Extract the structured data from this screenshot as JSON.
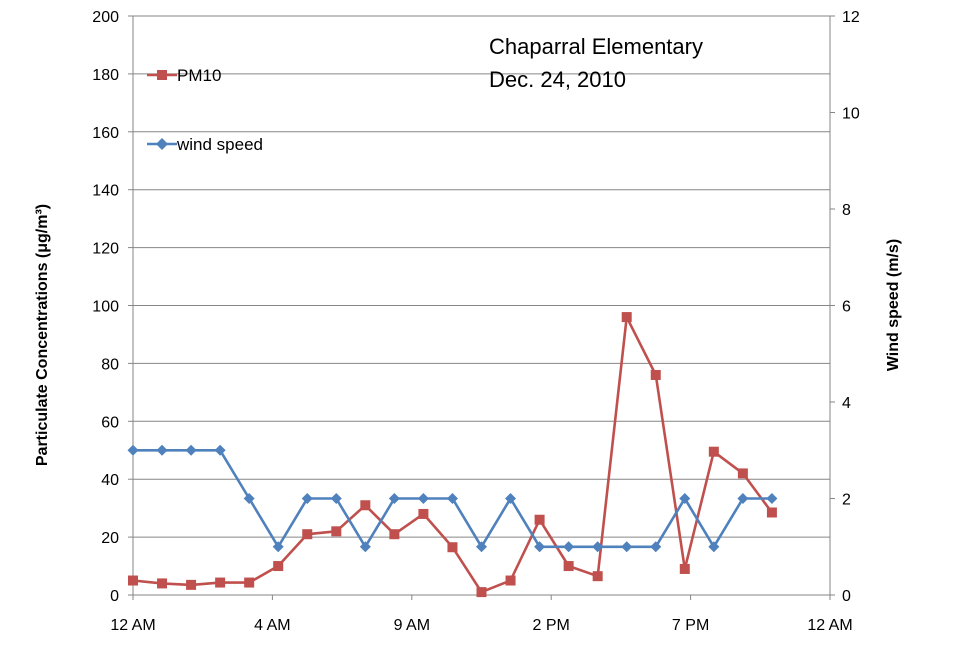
{
  "chart_data": {
    "type": "line",
    "annotation": [
      "Chaparral Elementary",
      "Dec. 24, 2010"
    ],
    "ylabel_left": "Particulate Concentrations (μg/m³)",
    "ylabel_right": "Wind speed (m/s)",
    "ylim_left": [
      0,
      200
    ],
    "ylim_right": [
      0,
      12
    ],
    "yticks_left": [
      "0",
      "20",
      "40",
      "60",
      "80",
      "100",
      "120",
      "140",
      "160",
      "180",
      "200"
    ],
    "yticks_right": [
      "0",
      "2",
      "4",
      "6",
      "8",
      "10",
      "12"
    ],
    "xlim": [
      0,
      24
    ],
    "xticks": [
      {
        "label": "12 AM",
        "x": 0
      },
      {
        "label": "4 AM",
        "x": 4.8
      },
      {
        "label": "9 AM",
        "x": 9.6
      },
      {
        "label": "2 PM",
        "x": 14.4
      },
      {
        "label": "7 PM",
        "x": 19.2
      },
      {
        "label": "12 AM",
        "x": 24
      }
    ],
    "grid": "horizontal",
    "legend_position": "top-left",
    "series": [
      {
        "name": "PM10",
        "axis": "left",
        "color": "#C0504D",
        "marker": "square",
        "x": [
          0,
          1,
          2,
          3,
          4,
          5,
          6,
          7,
          8,
          9,
          10,
          11,
          12,
          13,
          14,
          15,
          16,
          17,
          18,
          19,
          20,
          21,
          22
        ],
        "values": [
          5,
          4,
          3.5,
          4.3,
          4.3,
          10,
          21,
          22,
          31,
          21,
          28,
          16.5,
          1,
          5,
          26,
          10,
          6.5,
          96,
          76,
          9,
          49.5,
          42,
          28.5
        ]
      },
      {
        "name": "wind speed",
        "axis": "right",
        "color": "#4F81BD",
        "marker": "diamond",
        "x": [
          0,
          1,
          2,
          3,
          4,
          5,
          6,
          7,
          8,
          9,
          10,
          11,
          12,
          13,
          14,
          15,
          16,
          17,
          18,
          19,
          20,
          21,
          22
        ],
        "values": [
          3,
          3,
          3,
          3,
          2,
          1,
          2,
          2,
          1,
          2,
          2,
          2,
          1,
          2,
          1,
          1,
          1,
          1,
          1,
          2,
          1,
          2,
          2
        ]
      }
    ]
  }
}
